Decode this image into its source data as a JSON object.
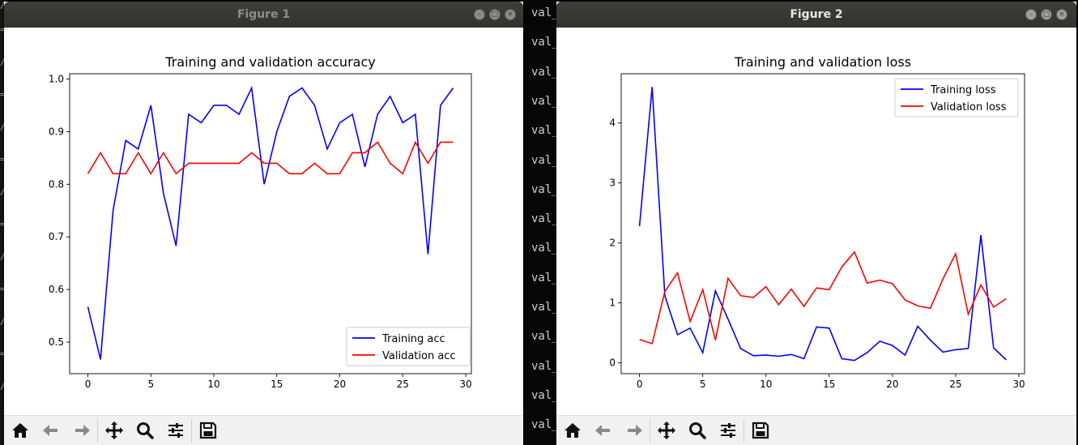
{
  "terminal": {
    "lines": [
      "val_",
      "val_",
      "val_",
      "val_",
      "val_",
      "val_",
      "val_",
      "val_",
      "val_",
      "val_",
      "val_",
      "val_",
      "val_",
      "val_",
      "val_"
    ]
  },
  "windows": [
    {
      "title": "Figure 1",
      "toolbar": [
        "home-icon",
        "back-icon",
        "forward-icon",
        "pan-icon",
        "zoom-icon",
        "configure-icon",
        "save-icon"
      ]
    },
    {
      "title": "Figure 2",
      "toolbar": [
        "home-icon",
        "back-icon",
        "forward-icon",
        "pan-icon",
        "zoom-icon",
        "configure-icon",
        "save-icon"
      ]
    }
  ],
  "colors": {
    "training": "#0000ff",
    "validation": "#ff0000"
  },
  "chart_data": [
    {
      "type": "line",
      "title": "Training and validation accuracy",
      "xlabel": "",
      "ylabel": "",
      "xlim": [
        -1.45,
        30.45
      ],
      "ylim": [
        0.44,
        1.01
      ],
      "xticks": [
        0,
        5,
        10,
        15,
        20,
        25,
        30
      ],
      "yticks": [
        0.5,
        0.6,
        0.7,
        0.8,
        0.9,
        1.0
      ],
      "ytick_labels": [
        "0.5",
        "0.6",
        "0.7",
        "0.8",
        "0.9",
        "1.0"
      ],
      "grid": false,
      "legend": "lower-right",
      "x": [
        0,
        1,
        2,
        3,
        4,
        5,
        6,
        7,
        8,
        9,
        10,
        11,
        12,
        13,
        14,
        15,
        16,
        17,
        18,
        19,
        20,
        21,
        22,
        23,
        24,
        25,
        26,
        27,
        28,
        29
      ],
      "series": [
        {
          "name": "Training acc",
          "color": "#0000ff",
          "values": [
            0.567,
            0.467,
            0.75,
            0.883,
            0.867,
            0.95,
            0.783,
            0.683,
            0.933,
            0.917,
            0.95,
            0.95,
            0.933,
            0.983,
            0.8,
            0.9,
            0.967,
            0.983,
            0.95,
            0.867,
            0.917,
            0.933,
            0.833,
            0.933,
            0.967,
            0.917,
            0.933,
            0.667,
            0.95,
            0.983
          ]
        },
        {
          "name": "Validation acc",
          "color": "#ff0000",
          "values": [
            0.82,
            0.86,
            0.82,
            0.82,
            0.86,
            0.82,
            0.86,
            0.82,
            0.84,
            0.84,
            0.84,
            0.84,
            0.84,
            0.86,
            0.84,
            0.84,
            0.82,
            0.82,
            0.84,
            0.82,
            0.82,
            0.86,
            0.86,
            0.88,
            0.84,
            0.82,
            0.88,
            0.84,
            0.88,
            0.88
          ]
        }
      ]
    },
    {
      "type": "line",
      "title": "Training and validation loss",
      "xlabel": "",
      "ylabel": "",
      "xlim": [
        -1.45,
        30.45
      ],
      "ylim": [
        -0.18,
        4.82
      ],
      "xticks": [
        0,
        5,
        10,
        15,
        20,
        25,
        30
      ],
      "yticks": [
        0,
        1,
        2,
        3,
        4
      ],
      "ytick_labels": [
        "0",
        "1",
        "2",
        "3",
        "4"
      ],
      "grid": false,
      "legend": "top-right",
      "x": [
        0,
        1,
        2,
        3,
        4,
        5,
        6,
        7,
        8,
        9,
        10,
        11,
        12,
        13,
        14,
        15,
        16,
        17,
        18,
        19,
        20,
        21,
        22,
        23,
        24,
        25,
        26,
        27,
        28,
        29
      ],
      "series": [
        {
          "name": "Training loss",
          "color": "#0000ff",
          "values": [
            2.28,
            4.6,
            1.12,
            0.47,
            0.58,
            0.17,
            1.2,
            0.73,
            0.24,
            0.12,
            0.13,
            0.11,
            0.14,
            0.07,
            0.6,
            0.58,
            0.07,
            0.04,
            0.17,
            0.36,
            0.29,
            0.13,
            0.61,
            0.38,
            0.18,
            0.22,
            0.24,
            2.13,
            0.25,
            0.05
          ]
        },
        {
          "name": "Validation loss",
          "color": "#ff0000",
          "values": [
            0.39,
            0.32,
            1.19,
            1.5,
            0.69,
            1.22,
            0.38,
            1.41,
            1.12,
            1.09,
            1.27,
            0.97,
            1.23,
            0.94,
            1.25,
            1.22,
            1.6,
            1.85,
            1.33,
            1.38,
            1.32,
            1.05,
            0.95,
            0.91,
            1.4,
            1.82,
            0.81,
            1.3,
            0.93,
            1.07
          ]
        }
      ]
    }
  ]
}
